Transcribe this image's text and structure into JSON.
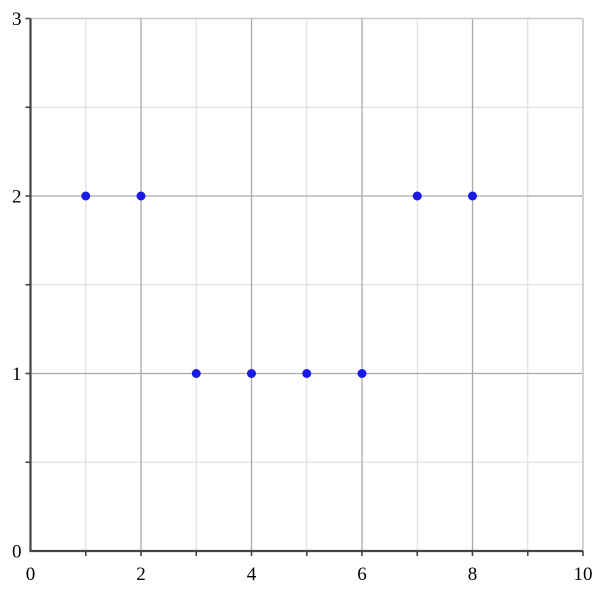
{
  "figure": {
    "background": "#ffffff",
    "title": ""
  },
  "chart_data": {
    "type": "scatter",
    "title": "",
    "xlabel": "",
    "ylabel": "",
    "points": [
      [
        1,
        2
      ],
      [
        2,
        2
      ],
      [
        3,
        1
      ],
      [
        4,
        1
      ],
      [
        5,
        1
      ],
      [
        6,
        1
      ],
      [
        7,
        2
      ],
      [
        8,
        2
      ]
    ],
    "xlim": [
      0,
      10
    ],
    "ylim": [
      0,
      3
    ],
    "x_label_values": [
      0,
      2,
      4,
      6,
      8,
      10
    ],
    "x_labels": [
      "0",
      "2",
      "4",
      "6",
      "8",
      "10"
    ],
    "y_label_values": [
      0,
      1,
      2,
      3
    ],
    "y_labels": [
      "0",
      "1",
      "2",
      "3"
    ],
    "x_ticks": [
      1,
      2,
      3,
      4,
      5,
      6,
      7,
      8,
      9,
      10
    ],
    "y_ticks": [
      0.5,
      1,
      1.5,
      2,
      2.5,
      3
    ],
    "x_major_gridlines": [
      2,
      4,
      6,
      8
    ],
    "x_minor_gridlines": [
      1,
      3,
      5,
      7,
      9
    ],
    "y_major_gridlines": [
      1,
      2
    ],
    "y_minor_gridlines": [
      0.5,
      1.5,
      2.5
    ],
    "grid": true,
    "legend": false,
    "marker": "circle",
    "marker_radius": 4.5,
    "colors": {
      "point": "#1a1ae6",
      "axis": "#444444",
      "major_grid": "#aaaaaa",
      "minor_grid": "#dcdcdc",
      "border": "#c8c8c8",
      "label": "#000000"
    }
  }
}
